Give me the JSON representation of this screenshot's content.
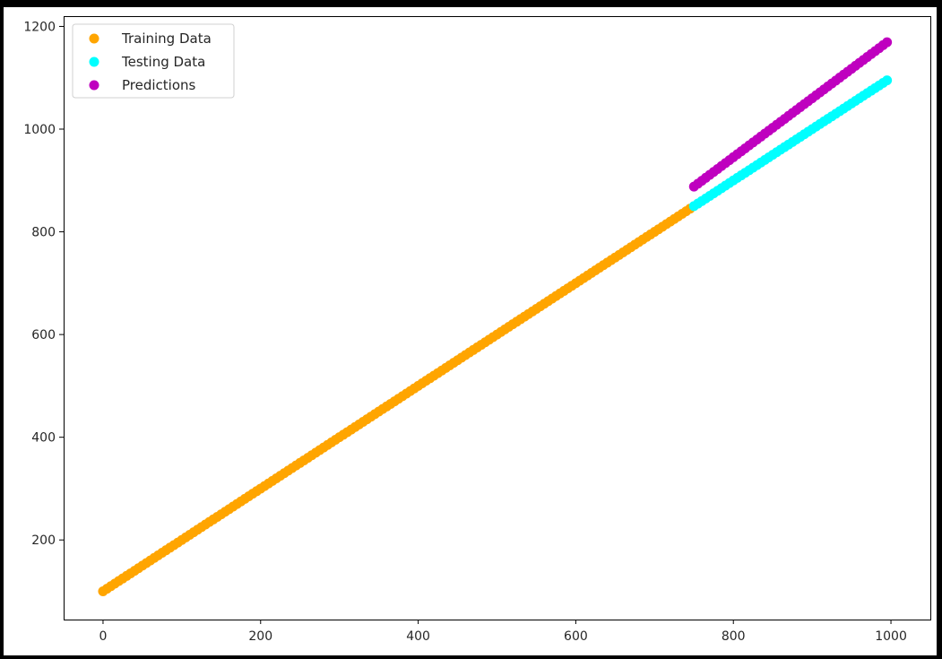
{
  "chart_data": {
    "type": "scatter",
    "title": "",
    "xlabel": "",
    "ylabel": "",
    "xlim": [
      -50,
      1050
    ],
    "ylim": [
      45,
      1220
    ],
    "x_ticks": [
      0,
      200,
      400,
      600,
      800,
      1000
    ],
    "y_ticks": [
      200,
      400,
      600,
      800,
      1000,
      1200
    ],
    "x_tick_labels": [
      "0",
      "200",
      "400",
      "600",
      "800",
      "1000"
    ],
    "y_tick_labels": [
      "200",
      "400",
      "600",
      "800",
      "1000",
      "1200"
    ],
    "grid": false,
    "legend_position": "top-left",
    "series": [
      {
        "name": "Training Data",
        "color": "#ffa500",
        "x_start": 0,
        "x_end": 745,
        "x_step": 5,
        "y_intercept": 100,
        "y_slope": 1.0
      },
      {
        "name": "Testing Data",
        "color": "#00ffff",
        "x_start": 750,
        "x_end": 995,
        "x_step": 5,
        "y_intercept": 100,
        "y_slope": 1.0
      },
      {
        "name": "Predictions",
        "color": "#bf00bf",
        "x_start": 750,
        "x_end": 995,
        "x_step": 5,
        "y_intercept": 27.2,
        "y_slope": 1.1477
      }
    ]
  }
}
